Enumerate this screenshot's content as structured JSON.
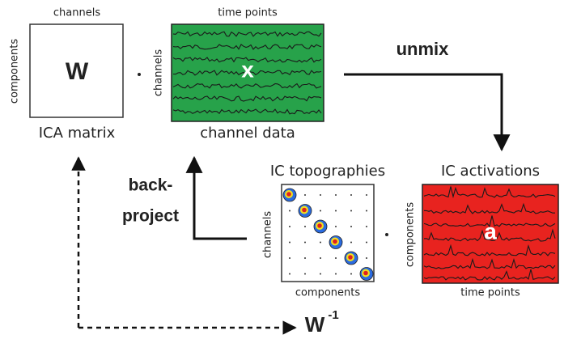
{
  "ica_matrix": {
    "top_label": "channels",
    "side_label": "components",
    "symbol": "W",
    "caption": "ICA matrix"
  },
  "channel_data": {
    "top_label": "time points",
    "side_label": "channels",
    "symbol": "x",
    "caption": "channel data"
  },
  "unmix_label": "unmix",
  "back_project_label": [
    "back-",
    "project"
  ],
  "ic_topographies": {
    "title": "IC topographies",
    "side_label": "channels",
    "bottom_label": "components"
  },
  "ic_activations": {
    "title": "IC activations",
    "side_label": "components",
    "symbol": "a",
    "bottom_label": "time points"
  },
  "inverse": {
    "symbol": "W",
    "superscript": "-1"
  }
}
